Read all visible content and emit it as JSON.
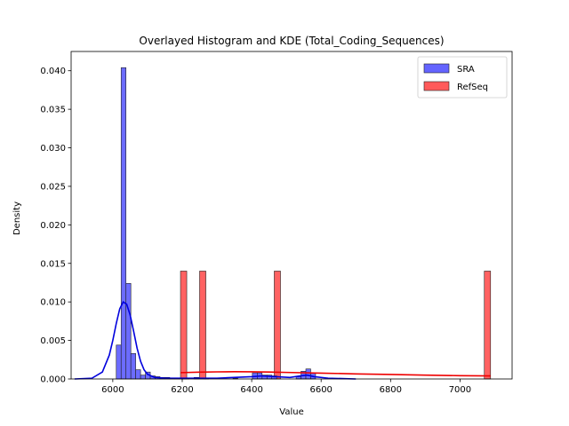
{
  "chart_data": {
    "type": "bar",
    "title": "Overlayed Histogram and KDE (Total_Coding_Sequences)",
    "xlabel": "Value",
    "ylabel": "Density",
    "xlim": [
      5880,
      7150
    ],
    "ylim": [
      0,
      0.0425
    ],
    "x_ticks": [
      6000,
      6200,
      6400,
      6600,
      6800,
      7000
    ],
    "y_ticks": [
      0.0,
      0.005,
      0.01,
      0.015,
      0.02,
      0.025,
      0.03,
      0.035,
      0.04
    ],
    "y_tick_labels": [
      "0.000",
      "0.005",
      "0.010",
      "0.015",
      "0.020",
      "0.025",
      "0.030",
      "0.035",
      "0.040"
    ],
    "grid": false,
    "legend_position": "top-right",
    "legend": [
      {
        "name": "SRA",
        "color": "#6464ff"
      },
      {
        "name": "RefSeq",
        "color": "#ff5a5a"
      }
    ],
    "series": [
      {
        "name": "SRA",
        "kind": "histogram",
        "fill": "#6464ff",
        "kde_color": "#0000dd",
        "bin_width": 14,
        "bins": [
          {
            "x0": 6010,
            "density": 0.0044
          },
          {
            "x0": 6024,
            "density": 0.0404
          },
          {
            "x0": 6038,
            "density": 0.0124
          },
          {
            "x0": 6052,
            "density": 0.0033
          },
          {
            "x0": 6066,
            "density": 0.0012
          },
          {
            "x0": 6080,
            "density": 0.0005
          },
          {
            "x0": 6094,
            "density": 0.0009
          },
          {
            "x0": 6108,
            "density": 0.0004
          },
          {
            "x0": 6122,
            "density": 0.0003
          },
          {
            "x0": 6136,
            "density": 0.0002
          },
          {
            "x0": 6150,
            "density": 0.0002
          },
          {
            "x0": 6164,
            "density": 0.0001
          },
          {
            "x0": 6178,
            "density": 0.0001
          },
          {
            "x0": 6192,
            "density": 0.0001
          },
          {
            "x0": 6206,
            "density": 0.0001
          },
          {
            "x0": 6234,
            "density": 0.0002
          },
          {
            "x0": 6262,
            "density": 0.0001
          },
          {
            "x0": 6346,
            "density": 0.0001
          },
          {
            "x0": 6402,
            "density": 0.0008
          },
          {
            "x0": 6416,
            "density": 0.0008
          },
          {
            "x0": 6430,
            "density": 0.0005
          },
          {
            "x0": 6444,
            "density": 0.0005
          },
          {
            "x0": 6458,
            "density": 0.0004
          },
          {
            "x0": 6528,
            "density": 0.0003
          },
          {
            "x0": 6542,
            "density": 0.001
          },
          {
            "x0": 6556,
            "density": 0.0013
          },
          {
            "x0": 6570,
            "density": 0.0008
          }
        ],
        "kde": [
          [
            5890,
            0.0
          ],
          [
            5940,
            0.0001
          ],
          [
            5970,
            0.0009
          ],
          [
            5990,
            0.0031
          ],
          [
            6000,
            0.005
          ],
          [
            6010,
            0.0072
          ],
          [
            6020,
            0.0091
          ],
          [
            6030,
            0.01
          ],
          [
            6040,
            0.0097
          ],
          [
            6050,
            0.0083
          ],
          [
            6060,
            0.0062
          ],
          [
            6070,
            0.004
          ],
          [
            6080,
            0.0023
          ],
          [
            6090,
            0.0012
          ],
          [
            6100,
            0.0006
          ],
          [
            6120,
            0.0002
          ],
          [
            6150,
            0.0001
          ],
          [
            6200,
            0.0001
          ],
          [
            6300,
            0.0001
          ],
          [
            6400,
            0.0003
          ],
          [
            6430,
            0.0004
          ],
          [
            6470,
            0.0003
          ],
          [
            6510,
            0.0002
          ],
          [
            6540,
            0.0004
          ],
          [
            6560,
            0.0005
          ],
          [
            6580,
            0.0003
          ],
          [
            6620,
            0.0001
          ],
          [
            6700,
            0.0
          ]
        ]
      },
      {
        "name": "RefSeq",
        "kind": "histogram",
        "fill": "#ff5a5a",
        "kde_color": "#ee0000",
        "bin_width": 18,
        "bins": [
          {
            "x0": 6195,
            "density": 0.014
          },
          {
            "x0": 6250,
            "density": 0.014
          },
          {
            "x0": 6465,
            "density": 0.014
          },
          {
            "x0": 7070,
            "density": 0.014
          }
        ],
        "kde": [
          [
            6195,
            0.00082
          ],
          [
            6250,
            0.00088
          ],
          [
            6300,
            0.00092
          ],
          [
            6350,
            0.00094
          ],
          [
            6400,
            0.00093
          ],
          [
            6450,
            0.0009
          ],
          [
            6500,
            0.00085
          ],
          [
            6600,
            0.00076
          ],
          [
            6700,
            0.00066
          ],
          [
            6800,
            0.00058
          ],
          [
            6900,
            0.0005
          ],
          [
            7000,
            0.00043
          ],
          [
            7088,
            0.0004
          ]
        ]
      }
    ]
  }
}
